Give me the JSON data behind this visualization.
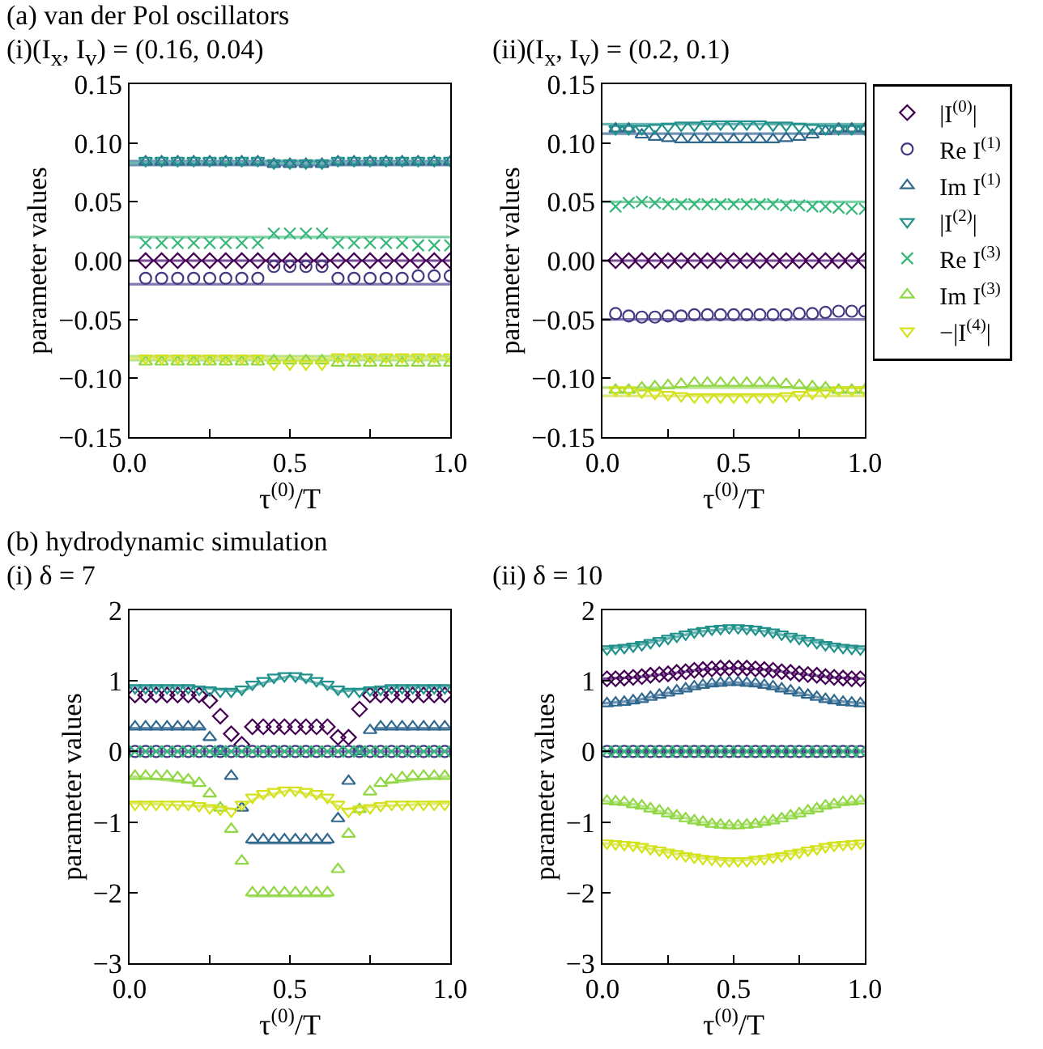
{
  "chart_data": [
    {
      "type": "scatter",
      "title": "(a) van der Pol oscillators",
      "subtitle": "(i)(I$_{x}$, I$_{v}$) = (0.16, 0.04)",
      "xlabel": "τ$^{(0)}$/T",
      "ylabel": "parameter values",
      "xlim": [
        0,
        1
      ],
      "ylim": [
        -0.15,
        0.15
      ],
      "xticks": [
        {
          "value": 0,
          "label": "0.0"
        },
        {
          "value": 0.25,
          "label": null
        },
        {
          "value": 0.5,
          "label": "0.5"
        },
        {
          "value": 0.75,
          "label": null
        },
        {
          "value": 1,
          "label": "1.0"
        }
      ],
      "yticks": [
        {
          "value": -0.15,
          "label": "−0.15"
        },
        {
          "value": -0.1,
          "label": "−0.10"
        },
        {
          "value": -0.05,
          "label": "−0.05"
        },
        {
          "value": 0,
          "label": "0.00"
        },
        {
          "value": 0.05,
          "label": "0.05"
        },
        {
          "value": 0.1,
          "label": "0.10"
        },
        {
          "value": 0.15,
          "label": "0.15"
        }
      ],
      "x": [
        0.05,
        0.1,
        0.15,
        0.2,
        0.25,
        0.3,
        0.35,
        0.4,
        0.45,
        0.5,
        0.55,
        0.6,
        0.65,
        0.7,
        0.75,
        0.8,
        0.85,
        0.9,
        0.95,
        1.0
      ],
      "series": [
        {
          "type": "line",
          "color": "#7a4f96",
          "x": [
            0,
            1
          ],
          "values": [
            0,
            0
          ],
          "marker": "none"
        },
        {
          "type": "line",
          "color": "#7f77b0",
          "x": [
            0,
            1
          ],
          "values": [
            -0.02,
            -0.02
          ],
          "marker": "none"
        },
        {
          "type": "line",
          "color": "#6f94b3",
          "x": [
            0,
            1
          ],
          "values": [
            0.083,
            0.083
          ],
          "marker": "none"
        },
        {
          "type": "line",
          "color": "#6bb5b2",
          "x": [
            0,
            1
          ],
          "values": [
            0.083,
            0.083
          ],
          "marker": "none"
        },
        {
          "type": "line",
          "color": "#7fd1a7",
          "x": [
            0,
            1
          ],
          "values": [
            0.02,
            0.02
          ],
          "marker": "none"
        },
        {
          "type": "line",
          "color": "#b8e487",
          "x": [
            0,
            1
          ],
          "values": [
            -0.083,
            -0.083
          ],
          "marker": "none"
        },
        {
          "type": "line",
          "color": "#e0ea7a",
          "x": [
            0,
            1
          ],
          "values": [
            -0.083,
            -0.083
          ],
          "marker": "none"
        },
        {
          "color": "#440154",
          "marker": "diamond",
          "values": [
            0,
            0,
            0,
            0,
            0,
            0,
            0,
            0,
            0,
            0,
            0,
            0,
            0,
            0,
            0,
            0,
            0,
            0,
            0,
            0
          ]
        },
        {
          "color": "#443983",
          "marker": "circle",
          "values": [
            -0.015,
            -0.015,
            -0.015,
            -0.015,
            -0.015,
            -0.015,
            -0.015,
            -0.015,
            -0.005,
            -0.005,
            -0.005,
            -0.005,
            -0.015,
            -0.015,
            -0.015,
            -0.015,
            -0.015,
            -0.013,
            -0.013,
            -0.013
          ]
        },
        {
          "color": "#31688e",
          "marker": "triangle",
          "values": [
            0.084,
            0.084,
            0.084,
            0.084,
            0.084,
            0.084,
            0.084,
            0.084,
            0.082,
            0.082,
            0.082,
            0.082,
            0.084,
            0.084,
            0.084,
            0.084,
            0.084,
            0.084,
            0.084,
            0.084
          ]
        },
        {
          "color": "#21918c",
          "marker": "triangle-down",
          "values": [
            0.085,
            0.085,
            0.085,
            0.085,
            0.085,
            0.085,
            0.085,
            0.085,
            0.083,
            0.083,
            0.083,
            0.083,
            0.085,
            0.085,
            0.085,
            0.085,
            0.085,
            0.085,
            0.085,
            0.085
          ]
        },
        {
          "color": "#35b779",
          "marker": "cross",
          "values": [
            0.015,
            0.015,
            0.015,
            0.015,
            0.015,
            0.015,
            0.015,
            0.015,
            0.023,
            0.023,
            0.023,
            0.023,
            0.015,
            0.015,
            0.015,
            0.015,
            0.015,
            0.013,
            0.013,
            0.013
          ]
        },
        {
          "color": "#90d743",
          "marker": "triangle",
          "values": [
            -0.086,
            -0.086,
            -0.086,
            -0.086,
            -0.086,
            -0.086,
            -0.086,
            -0.086,
            -0.085,
            -0.085,
            -0.085,
            -0.085,
            -0.087,
            -0.087,
            -0.087,
            -0.087,
            -0.087,
            -0.087,
            -0.087,
            -0.087
          ]
        },
        {
          "color": "#d4e21a",
          "marker": "triangle-down",
          "values": [
            -0.083,
            -0.083,
            -0.083,
            -0.083,
            -0.083,
            -0.083,
            -0.083,
            -0.083,
            -0.088,
            -0.088,
            -0.088,
            -0.088,
            -0.082,
            -0.082,
            -0.082,
            -0.082,
            -0.082,
            -0.082,
            -0.082,
            -0.082
          ]
        }
      ]
    },
    {
      "type": "scatter",
      "title": "(ii)(I$_{x}$, I$_{v}$) = (0.2, 0.1)",
      "xlabel": "τ$^{(0)}$/T",
      "ylabel": "parameter values",
      "xlim": [
        0,
        1
      ],
      "ylim": [
        -0.15,
        0.15
      ],
      "legend": "right",
      "xticks": [
        {
          "value": 0,
          "label": "0.0"
        },
        {
          "value": 0.25,
          "label": null
        },
        {
          "value": 0.5,
          "label": "0.5"
        },
        {
          "value": 0.75,
          "label": null
        },
        {
          "value": 1,
          "label": "1.0"
        }
      ],
      "yticks": [
        {
          "value": -0.15,
          "label": "−0.15"
        },
        {
          "value": -0.1,
          "label": "−0.10"
        },
        {
          "value": -0.05,
          "label": "−0.05"
        },
        {
          "value": 0,
          "label": "0.00"
        },
        {
          "value": 0.05,
          "label": "0.05"
        },
        {
          "value": 0.1,
          "label": "0.10"
        },
        {
          "value": 0.15,
          "label": "0.15"
        }
      ],
      "x": [
        0.05,
        0.1,
        0.15,
        0.2,
        0.25,
        0.3,
        0.35,
        0.4,
        0.45,
        0.5,
        0.55,
        0.6,
        0.65,
        0.7,
        0.75,
        0.8,
        0.85,
        0.9,
        0.95,
        1.0
      ],
      "series": [
        {
          "type": "line",
          "color": "#7a4f96",
          "x": [
            0,
            1
          ],
          "values": [
            0,
            0
          ],
          "marker": "none"
        },
        {
          "type": "line",
          "color": "#7f77b0",
          "x": [
            0,
            1
          ],
          "values": [
            -0.05,
            -0.05
          ],
          "marker": "none"
        },
        {
          "type": "line",
          "color": "#6f94b3",
          "x": [
            0,
            1
          ],
          "values": [
            0.108,
            0.108
          ],
          "marker": "none"
        },
        {
          "type": "line",
          "color": "#6bb5b2",
          "x": [
            0,
            1
          ],
          "values": [
            0.116,
            0.116
          ],
          "marker": "none"
        },
        {
          "type": "line",
          "color": "#7fd1a7",
          "x": [
            0,
            1
          ],
          "values": [
            0.05,
            0.05
          ],
          "marker": "none"
        },
        {
          "type": "line",
          "color": "#b8e487",
          "x": [
            0,
            1
          ],
          "values": [
            -0.108,
            -0.108
          ],
          "marker": "none"
        },
        {
          "type": "line",
          "color": "#e0ea7a",
          "x": [
            0,
            1
          ],
          "values": [
            -0.115,
            -0.115
          ],
          "marker": "none"
        },
        {
          "name": "|I$^{(0)}$|",
          "color": "#440154",
          "marker": "diamond",
          "values": [
            0,
            0,
            0,
            0,
            0,
            0,
            0,
            0,
            0,
            0,
            0,
            0,
            0,
            0,
            0,
            0,
            0,
            0,
            0,
            0
          ]
        },
        {
          "name": "Re I$^{(1)}$",
          "color": "#443983",
          "marker": "circle",
          "values": [
            -0.045,
            -0.047,
            -0.048,
            -0.048,
            -0.047,
            -0.047,
            -0.046,
            -0.046,
            -0.046,
            -0.046,
            -0.046,
            -0.046,
            -0.046,
            -0.046,
            -0.045,
            -0.045,
            -0.044,
            -0.043,
            -0.043,
            -0.043
          ]
        },
        {
          "name": "Im I$^{(1)}$",
          "color": "#31688e",
          "marker": "triangle",
          "values": [
            0.112,
            0.112,
            0.107,
            0.105,
            0.104,
            0.103,
            0.103,
            0.103,
            0.103,
            0.103,
            0.103,
            0.103,
            0.103,
            0.104,
            0.105,
            0.107,
            0.11,
            0.112,
            0.112,
            0.112
          ]
        },
        {
          "name": "|I$^{(2)}$|",
          "color": "#21918c",
          "marker": "triangle-down",
          "values": [
            0.112,
            0.112,
            0.112,
            0.113,
            0.114,
            0.115,
            0.115,
            0.116,
            0.116,
            0.116,
            0.116,
            0.116,
            0.115,
            0.115,
            0.114,
            0.113,
            0.112,
            0.112,
            0.112,
            0.112
          ]
        },
        {
          "name": "Re I$^{(3)}$",
          "color": "#35b779",
          "marker": "cross",
          "values": [
            0.046,
            0.049,
            0.05,
            0.049,
            0.048,
            0.048,
            0.048,
            0.048,
            0.048,
            0.048,
            0.048,
            0.048,
            0.048,
            0.047,
            0.047,
            0.046,
            0.046,
            0.045,
            0.044,
            0.044
          ]
        },
        {
          "name": "Im I$^{(3)}$",
          "color": "#90d743",
          "marker": "triangle",
          "values": [
            -0.11,
            -0.11,
            -0.108,
            -0.107,
            -0.106,
            -0.105,
            -0.104,
            -0.104,
            -0.104,
            -0.104,
            -0.104,
            -0.104,
            -0.104,
            -0.105,
            -0.106,
            -0.107,
            -0.108,
            -0.11,
            -0.11,
            -0.11
          ]
        },
        {
          "name": "−|I$^{(4)}$|",
          "color": "#d4e21a",
          "marker": "triangle-down",
          "values": [
            -0.11,
            -0.11,
            -0.112,
            -0.113,
            -0.114,
            -0.115,
            -0.116,
            -0.116,
            -0.116,
            -0.116,
            -0.116,
            -0.116,
            -0.116,
            -0.115,
            -0.114,
            -0.113,
            -0.112,
            -0.11,
            -0.11,
            -0.11
          ]
        }
      ]
    },
    {
      "type": "scatter",
      "title": "(b) hydrodynamic simulation",
      "subtitle": "(i) δ = 7",
      "xlabel": "τ$^{(0)}$/T",
      "ylabel": "parameter values",
      "xlim": [
        0,
        1
      ],
      "ylim": [
        -3,
        2
      ],
      "xticks": [
        {
          "value": 0,
          "label": "0.0"
        },
        {
          "value": 0.25,
          "label": null
        },
        {
          "value": 0.5,
          "label": "0.5"
        },
        {
          "value": 0.75,
          "label": null
        },
        {
          "value": 1,
          "label": "1.0"
        }
      ],
      "yticks": [
        {
          "value": -3,
          "label": "−3"
        },
        {
          "value": -2,
          "label": "−2"
        },
        {
          "value": -1,
          "label": "−1"
        },
        0,
        1,
        2
      ],
      "x": [
        0.017,
        0.05,
        0.083,
        0.117,
        0.15,
        0.183,
        0.217,
        0.25,
        0.283,
        0.317,
        0.35,
        0.383,
        0.417,
        0.45,
        0.483,
        0.517,
        0.55,
        0.583,
        0.617,
        0.65,
        0.683,
        0.717,
        0.75,
        0.783,
        0.817,
        0.85,
        0.883,
        0.917,
        0.95,
        0.983
      ],
      "series": [
        {
          "type": "line",
          "color": "#7f77b0",
          "x": [
            0,
            1
          ],
          "values": [
            0,
            0
          ],
          "marker": "none"
        },
        {
          "type": "line",
          "color": "#6f94b3",
          "x": [
            0,
            0.23,
            0.3,
            0.37,
            0.63,
            0.7,
            0.77,
            1
          ],
          "values": [
            0.33,
            0.33,
            null,
            -1.3,
            -1.3,
            null,
            0.33,
            0.33
          ],
          "marker": "none"
        },
        {
          "type": "line",
          "color": "#6bb5b2",
          "x": [
            0,
            0.2,
            0.3,
            0.35,
            0.4,
            0.5,
            0.6,
            0.65,
            0.7,
            0.8,
            1
          ],
          "values": [
            0.92,
            0.92,
            0.87,
            0.85,
            0.95,
            1.07,
            0.95,
            0.85,
            0.87,
            0.92,
            0.92
          ],
          "marker": "none"
        },
        {
          "type": "line",
          "color": "#b8e487",
          "x": [
            0,
            0.2,
            0.3,
            0.37,
            0.63,
            0.7,
            0.8,
            1
          ],
          "values": [
            -0.35,
            -0.45,
            null,
            -2.05,
            -2.05,
            null,
            -0.45,
            -0.35
          ],
          "marker": "none"
        },
        {
          "type": "line",
          "color": "#e0ea7a",
          "x": [
            0,
            0.25,
            0.33,
            0.4,
            0.5,
            0.6,
            0.67,
            0.75,
            1
          ],
          "values": [
            -0.73,
            -0.78,
            -0.82,
            -0.65,
            -0.55,
            -0.65,
            -0.82,
            -0.78,
            -0.73
          ],
          "marker": "none"
        },
        {
          "color": "#440154",
          "marker": "diamond",
          "values": [
            0.8,
            0.8,
            0.8,
            0.8,
            0.8,
            0.8,
            0.8,
            0.72,
            0.5,
            0.25,
            0.1,
            0.35,
            0.35,
            0.35,
            0.35,
            0.35,
            0.35,
            0.35,
            0.35,
            0.2,
            0.2,
            0.6,
            0.8,
            0.8,
            0.8,
            0.8,
            0.8,
            0.8,
            0.8,
            0.8
          ]
        },
        {
          "color": "#443983",
          "marker": "circle",
          "values": [
            0,
            0,
            0,
            0,
            0,
            0,
            0,
            0,
            0,
            0,
            0,
            0,
            0,
            0,
            0,
            0,
            0,
            0,
            0,
            0,
            0,
            0,
            0,
            0,
            0,
            0,
            0,
            0,
            0,
            0
          ]
        },
        {
          "color": "#31688e",
          "marker": "triangle",
          "values": [
            0.35,
            0.35,
            0.35,
            0.35,
            0.35,
            0.35,
            0.35,
            0.2,
            0,
            -0.35,
            -0.8,
            -1.25,
            -1.25,
            -1.25,
            -1.25,
            -1.25,
            -1.25,
            -1.25,
            -1.25,
            -0.95,
            -0.42,
            0,
            0.3,
            0.35,
            0.35,
            0.35,
            0.35,
            0.35,
            0.35,
            0.35
          ]
        },
        {
          "color": "#21918c",
          "marker": "triangle-down",
          "values": [
            0.9,
            0.9,
            0.9,
            0.9,
            0.9,
            0.9,
            0.88,
            0.87,
            0.85,
            0.85,
            0.88,
            0.95,
            1.0,
            1.05,
            1.07,
            1.07,
            1.05,
            1.0,
            0.95,
            0.88,
            0.85,
            0.85,
            0.87,
            0.88,
            0.9,
            0.9,
            0.9,
            0.9,
            0.9,
            0.9
          ]
        },
        {
          "color": "#35b779",
          "marker": "cross",
          "values": [
            0,
            0,
            0,
            0,
            0,
            0,
            0,
            0,
            0,
            0,
            0,
            0,
            0,
            0,
            0,
            0,
            0,
            0,
            0,
            0,
            0,
            0,
            0,
            0,
            0,
            0,
            0,
            0,
            0,
            0
          ]
        },
        {
          "color": "#90d743",
          "marker": "triangle",
          "values": [
            -0.35,
            -0.35,
            -0.35,
            -0.35,
            -0.37,
            -0.4,
            -0.45,
            -0.6,
            -0.8,
            -1.1,
            -1.55,
            -2.0,
            -2.0,
            -2.0,
            -2.0,
            -2.0,
            -2.0,
            -2.0,
            -2.0,
            -1.67,
            -1.17,
            -0.82,
            -0.57,
            -0.45,
            -0.4,
            -0.37,
            -0.35,
            -0.35,
            -0.35,
            -0.35
          ]
        },
        {
          "color": "#d4e21a",
          "marker": "triangle-down",
          "values": [
            -0.75,
            -0.75,
            -0.75,
            -0.75,
            -0.75,
            -0.75,
            -0.77,
            -0.8,
            -0.82,
            -0.85,
            -0.75,
            -0.65,
            -0.6,
            -0.57,
            -0.55,
            -0.55,
            -0.57,
            -0.6,
            -0.65,
            -0.75,
            -0.85,
            -0.82,
            -0.8,
            -0.77,
            -0.75,
            -0.75,
            -0.75,
            -0.75,
            -0.75,
            -0.75
          ]
        }
      ]
    },
    {
      "type": "scatter",
      "title": "(ii) δ = 10",
      "xlabel": "τ$^{(0)}$/T",
      "ylabel": "parameter values",
      "xlim": [
        0,
        1
      ],
      "ylim": [
        -3,
        2
      ],
      "xticks": [
        {
          "value": 0,
          "label": "0.0"
        },
        {
          "value": 0.25,
          "label": null
        },
        {
          "value": 0.5,
          "label": "0.5"
        },
        {
          "value": 0.75,
          "label": null
        },
        {
          "value": 1,
          "label": "1.0"
        }
      ],
      "yticks": [
        {
          "value": -3,
          "label": "−3"
        },
        {
          "value": -2,
          "label": "−2"
        },
        {
          "value": -1,
          "label": "−1"
        },
        0,
        1,
        2
      ],
      "x": [
        0.017,
        0.05,
        0.083,
        0.117,
        0.15,
        0.183,
        0.217,
        0.25,
        0.283,
        0.317,
        0.35,
        0.383,
        0.417,
        0.45,
        0.483,
        0.517,
        0.55,
        0.583,
        0.617,
        0.65,
        0.683,
        0.717,
        0.75,
        0.783,
        0.817,
        0.85,
        0.883,
        0.917,
        0.95,
        0.983
      ],
      "series": [
        {
          "type": "line",
          "color": "#7f77b0",
          "x": [
            0,
            1
          ],
          "values": [
            0,
            0
          ],
          "marker": "none"
        },
        {
          "type": "line",
          "color": "#7a4f96",
          "x": [
            0,
            0.125,
            0.25,
            0.375,
            0.5,
            0.625,
            0.75,
            0.875,
            1
          ],
          "values": [
            1.03,
            1.05,
            1.1,
            1.16,
            1.18,
            1.16,
            1.1,
            1.05,
            1.03
          ],
          "marker": "none"
        },
        {
          "type": "line",
          "color": "#6f94b3",
          "x": [
            0,
            0.125,
            0.25,
            0.375,
            0.5,
            0.625,
            0.75,
            0.875,
            1
          ],
          "values": [
            0.68,
            0.72,
            0.83,
            0.94,
            0.98,
            0.94,
            0.83,
            0.72,
            0.68
          ],
          "marker": "none"
        },
        {
          "type": "line",
          "color": "#6bb5b2",
          "x": [
            0,
            0.125,
            0.25,
            0.375,
            0.5,
            0.625,
            0.75,
            0.875,
            1
          ],
          "values": [
            1.45,
            1.5,
            1.6,
            1.7,
            1.75,
            1.7,
            1.6,
            1.5,
            1.45
          ],
          "marker": "none"
        },
        {
          "type": "line",
          "color": "#b8e487",
          "x": [
            0,
            0.125,
            0.25,
            0.375,
            0.5,
            0.625,
            0.75,
            0.875,
            1
          ],
          "values": [
            -0.7,
            -0.75,
            -0.88,
            -1.0,
            -1.05,
            -1.0,
            -0.88,
            -0.75,
            -0.7
          ],
          "marker": "none"
        },
        {
          "type": "line",
          "color": "#e0ea7a",
          "x": [
            0,
            0.125,
            0.25,
            0.375,
            0.5,
            0.625,
            0.75,
            0.875,
            1
          ],
          "values": [
            -1.3,
            -1.34,
            -1.43,
            -1.51,
            -1.55,
            -1.51,
            -1.43,
            -1.34,
            -1.3
          ],
          "marker": "none"
        },
        {
          "color": "#440154",
          "marker": "diamond",
          "values": [
            1.03,
            1.03,
            1.04,
            1.05,
            1.06,
            1.08,
            1.09,
            1.1,
            1.12,
            1.13,
            1.15,
            1.16,
            1.17,
            1.18,
            1.18,
            1.18,
            1.18,
            1.17,
            1.16,
            1.15,
            1.13,
            1.12,
            1.1,
            1.09,
            1.08,
            1.06,
            1.05,
            1.04,
            1.03,
            1.03
          ]
        },
        {
          "color": "#443983",
          "marker": "circle",
          "values": [
            0,
            0,
            0,
            0,
            0,
            0,
            0,
            0,
            0,
            0,
            0,
            0,
            0,
            0,
            0,
            0,
            0,
            0,
            0,
            0,
            0,
            0,
            0,
            0,
            0,
            0,
            0,
            0,
            0,
            0
          ]
        },
        {
          "color": "#31688e",
          "marker": "triangle",
          "values": [
            0.68,
            0.69,
            0.7,
            0.72,
            0.74,
            0.77,
            0.8,
            0.83,
            0.86,
            0.89,
            0.92,
            0.94,
            0.96,
            0.97,
            0.98,
            0.98,
            0.97,
            0.96,
            0.94,
            0.92,
            0.89,
            0.86,
            0.83,
            0.8,
            0.77,
            0.74,
            0.72,
            0.7,
            0.69,
            0.68
          ]
        },
        {
          "color": "#21918c",
          "marker": "triangle-down",
          "values": [
            1.45,
            1.46,
            1.47,
            1.49,
            1.51,
            1.54,
            1.57,
            1.6,
            1.63,
            1.66,
            1.69,
            1.71,
            1.73,
            1.74,
            1.75,
            1.75,
            1.74,
            1.73,
            1.71,
            1.69,
            1.66,
            1.63,
            1.6,
            1.57,
            1.54,
            1.51,
            1.49,
            1.47,
            1.46,
            1.45
          ]
        },
        {
          "color": "#35b779",
          "marker": "cross",
          "values": [
            0,
            0,
            0,
            0,
            0,
            0,
            0,
            0,
            0,
            0,
            0,
            0,
            0,
            0,
            0,
            0,
            0,
            0,
            0,
            0,
            0,
            0,
            0,
            0,
            0,
            0,
            0,
            0,
            0,
            0
          ]
        },
        {
          "color": "#90d743",
          "marker": "triangle",
          "values": [
            -0.7,
            -0.71,
            -0.72,
            -0.75,
            -0.77,
            -0.81,
            -0.84,
            -0.88,
            -0.91,
            -0.95,
            -0.98,
            -1.0,
            -1.03,
            -1.04,
            -1.05,
            -1.05,
            -1.04,
            -1.03,
            -1.0,
            -0.98,
            -0.95,
            -0.91,
            -0.88,
            -0.84,
            -0.81,
            -0.77,
            -0.75,
            -0.72,
            -0.71,
            -0.7
          ]
        },
        {
          "color": "#d4e21a",
          "marker": "triangle-down",
          "values": [
            -1.3,
            -1.31,
            -1.32,
            -1.33,
            -1.35,
            -1.38,
            -1.4,
            -1.43,
            -1.45,
            -1.48,
            -1.5,
            -1.52,
            -1.53,
            -1.55,
            -1.55,
            -1.55,
            -1.55,
            -1.53,
            -1.52,
            -1.5,
            -1.48,
            -1.45,
            -1.43,
            -1.4,
            -1.38,
            -1.35,
            -1.33,
            -1.32,
            -1.31,
            -1.3
          ]
        }
      ]
    }
  ]
}
